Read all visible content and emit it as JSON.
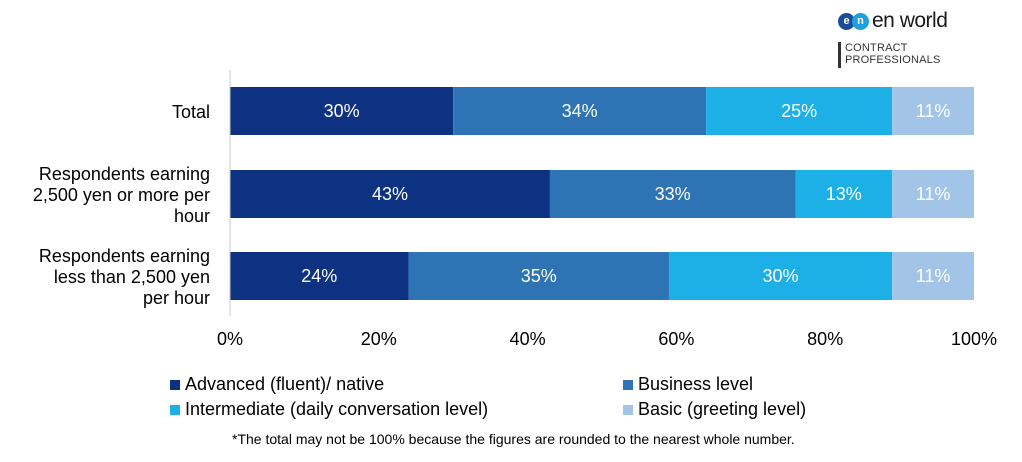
{
  "logo": {
    "mark_letters": [
      "e",
      "n"
    ],
    "mark_colors": [
      "#1a4d96",
      "#1fa0dc"
    ],
    "text": "en world",
    "sub_line1": "CONTRACT",
    "sub_line2": "PROFESSIONALS"
  },
  "chart_data": {
    "type": "bar",
    "orientation": "horizontal",
    "stacked": true,
    "categories": [
      [
        "Total"
      ],
      [
        "Respondents earning",
        "2,500 yen or more per",
        "hour"
      ],
      [
        "Respondents earning",
        "less than 2,500 yen",
        "per hour"
      ]
    ],
    "series": [
      {
        "name": "Advanced (fluent)/ native",
        "color": "#0d3281",
        "values": [
          30,
          43,
          24
        ],
        "labels": [
          "30%",
          "43%",
          "24%"
        ]
      },
      {
        "name": "Business level",
        "color": "#2e74b5",
        "values": [
          34,
          33,
          35
        ],
        "labels": [
          "34%",
          "33%",
          "35%"
        ]
      },
      {
        "name": "Intermediate (daily conversation level)",
        "color": "#1cb0e6",
        "values": [
          25,
          13,
          30
        ],
        "labels": [
          "25%",
          "13%",
          "30%"
        ]
      },
      {
        "name": "Basic (greeting level)",
        "color": "#a2c4e6",
        "values": [
          11,
          11,
          11
        ],
        "labels": [
          "11%",
          "11%",
          "11%"
        ]
      }
    ],
    "xlim": [
      0,
      100
    ],
    "x_ticks": [
      "0%",
      "20%",
      "40%",
      "60%",
      "80%",
      "100%"
    ],
    "grid": false,
    "legend_position": "bottom"
  },
  "footnote": "*The total may not be 100% because the figures are rounded to the nearest whole number."
}
